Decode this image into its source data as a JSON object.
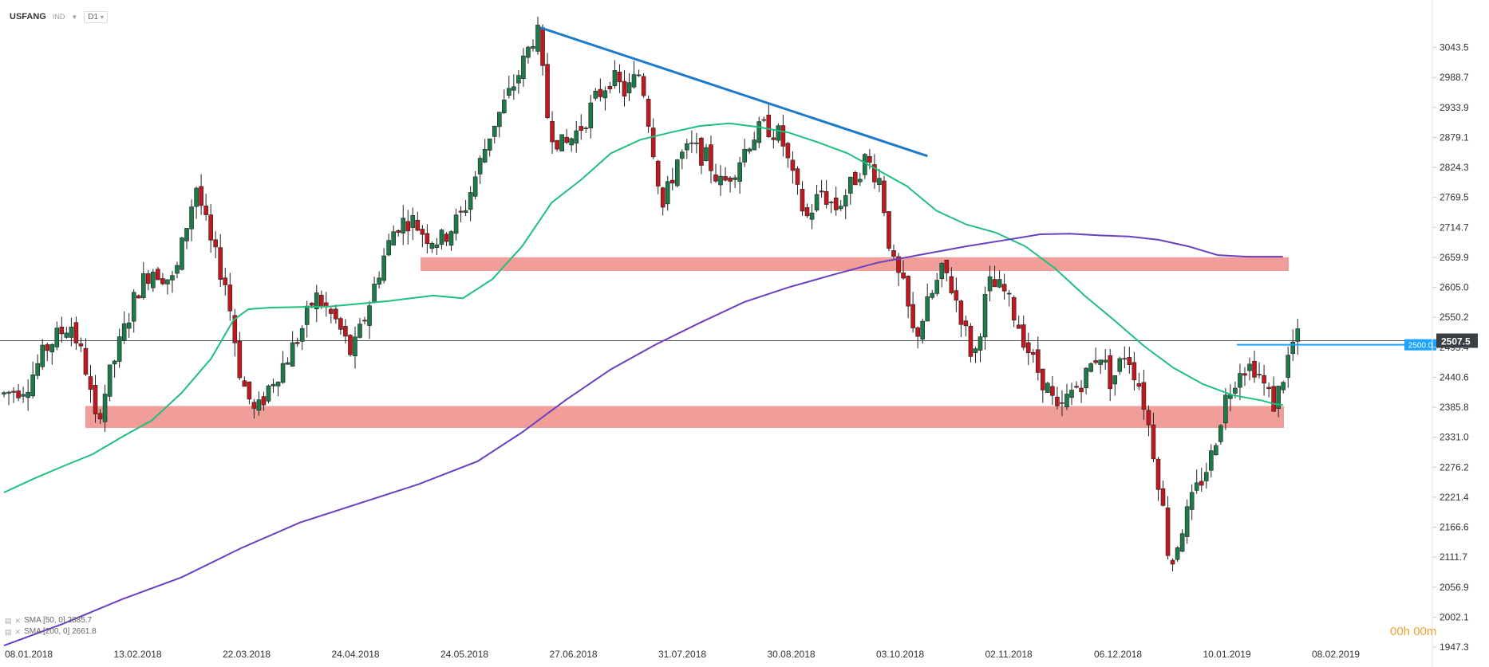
{
  "header": {
    "symbol": "USFANG",
    "type": "IND",
    "timeframe": "D1"
  },
  "legend": {
    "sma50": "SMA [50, 0] 2385.7",
    "sma200": "SMA [200, 0] 2661.8"
  },
  "timer": "00h 00m",
  "colors": {
    "bull": "#1f7a4a",
    "bear": "#c0181e",
    "sma50": "#1fbf7f",
    "sma200": "#6a3fc0",
    "trendline": "#1f7ac8",
    "zone": "#ef8c88",
    "hline": "#1aa3ff",
    "price_tag": "#3a3f44"
  },
  "chart_data": {
    "type": "candlestick",
    "y_ticks": [
      "3043.5",
      "2988.7",
      "2933.9",
      "2879.1",
      "2824.3",
      "2769.5",
      "2714.7",
      "2659.9",
      "2605.0",
      "2550.2",
      "2495.4",
      "2440.6",
      "2385.8",
      "2331.0",
      "2276.2",
      "2221.4",
      "2166.6",
      "2111.7",
      "2056.9",
      "2002.1",
      "1947.3"
    ],
    "x_ticks": [
      "08.01.2018",
      "13.02.2018",
      "22.03.2018",
      "24.04.2018",
      "24.05.2018",
      "27.06.2018",
      "31.07.2018",
      "30.08.2018",
      "03.10.2018",
      "02.11.2018",
      "06.12.2018",
      "10.01.2019",
      "08.02.2019"
    ],
    "ylim": [
      1947.3,
      3098.3
    ],
    "last_price": "2507.5",
    "level_label": "2500.0",
    "zones": [
      {
        "from": 2635,
        "to": 2660
      },
      {
        "from": 2348,
        "to": 2388
      }
    ],
    "trendline": [
      [
        0.3622,
        3080
      ],
      [
        0.6239,
        2845
      ]
    ],
    "hline_level": 2500,
    "sma50": [
      [
        0.0,
        2230
      ],
      [
        0.02,
        2255
      ],
      [
        0.04,
        2278
      ],
      [
        0.06,
        2300
      ],
      [
        0.08,
        2332
      ],
      [
        0.1,
        2362
      ],
      [
        0.12,
        2412
      ],
      [
        0.14,
        2475
      ],
      [
        0.155,
        2545
      ],
      [
        0.165,
        2565
      ],
      [
        0.18,
        2568
      ],
      [
        0.22,
        2570
      ],
      [
        0.26,
        2580
      ],
      [
        0.29,
        2590
      ],
      [
        0.31,
        2585
      ],
      [
        0.33,
        2620
      ],
      [
        0.35,
        2680
      ],
      [
        0.37,
        2760
      ],
      [
        0.39,
        2802
      ],
      [
        0.41,
        2850
      ],
      [
        0.43,
        2875
      ],
      [
        0.45,
        2888
      ],
      [
        0.47,
        2900
      ],
      [
        0.49,
        2905
      ],
      [
        0.51,
        2898
      ],
      [
        0.53,
        2888
      ],
      [
        0.55,
        2870
      ],
      [
        0.57,
        2850
      ],
      [
        0.59,
        2820
      ],
      [
        0.61,
        2790
      ],
      [
        0.63,
        2745
      ],
      [
        0.65,
        2720
      ],
      [
        0.67,
        2705
      ],
      [
        0.69,
        2680
      ],
      [
        0.71,
        2640
      ],
      [
        0.73,
        2590
      ],
      [
        0.75,
        2545
      ],
      [
        0.77,
        2498
      ],
      [
        0.79,
        2458
      ],
      [
        0.81,
        2428
      ],
      [
        0.83,
        2408
      ],
      [
        0.85,
        2398
      ],
      [
        0.858,
        2392
      ],
      [
        0.864,
        2390
      ]
    ],
    "sma200": [
      [
        0.0,
        1950
      ],
      [
        0.04,
        1990
      ],
      [
        0.08,
        2035
      ],
      [
        0.12,
        2075
      ],
      [
        0.16,
        2128
      ],
      [
        0.2,
        2175
      ],
      [
        0.24,
        2210
      ],
      [
        0.28,
        2245
      ],
      [
        0.32,
        2287
      ],
      [
        0.35,
        2340
      ],
      [
        0.38,
        2400
      ],
      [
        0.41,
        2455
      ],
      [
        0.44,
        2500
      ],
      [
        0.47,
        2540
      ],
      [
        0.5,
        2578
      ],
      [
        0.53,
        2605
      ],
      [
        0.56,
        2628
      ],
      [
        0.59,
        2650
      ],
      [
        0.62,
        2665
      ],
      [
        0.65,
        2680
      ],
      [
        0.68,
        2693
      ],
      [
        0.7,
        2702
      ],
      [
        0.72,
        2703
      ],
      [
        0.74,
        2700
      ],
      [
        0.76,
        2698
      ],
      [
        0.78,
        2692
      ],
      [
        0.8,
        2680
      ],
      [
        0.82,
        2664
      ],
      [
        0.84,
        2661
      ],
      [
        0.864,
        2661
      ]
    ],
    "candles_knots": [
      [
        0.0,
        2410
      ],
      [
        0.015,
        2425
      ],
      [
        0.03,
        2500
      ],
      [
        0.045,
        2540
      ],
      [
        0.055,
        2460
      ],
      [
        0.062,
        2355
      ],
      [
        0.072,
        2450
      ],
      [
        0.09,
        2600
      ],
      [
        0.1,
        2640
      ],
      [
        0.115,
        2615
      ],
      [
        0.125,
        2740
      ],
      [
        0.13,
        2790
      ],
      [
        0.14,
        2680
      ],
      [
        0.15,
        2610
      ],
      [
        0.16,
        2440
      ],
      [
        0.17,
        2370
      ],
      [
        0.18,
        2430
      ],
      [
        0.19,
        2470
      ],
      [
        0.2,
        2520
      ],
      [
        0.21,
        2590
      ],
      [
        0.225,
        2540
      ],
      [
        0.235,
        2480
      ],
      [
        0.245,
        2560
      ],
      [
        0.255,
        2650
      ],
      [
        0.265,
        2720
      ],
      [
        0.275,
        2730
      ],
      [
        0.285,
        2700
      ],
      [
        0.295,
        2690
      ],
      [
        0.31,
        2740
      ],
      [
        0.32,
        2820
      ],
      [
        0.33,
        2900
      ],
      [
        0.34,
        2950
      ],
      [
        0.35,
        3010
      ],
      [
        0.36,
        3080
      ],
      [
        0.368,
        2900
      ],
      [
        0.378,
        2860
      ],
      [
        0.39,
        2900
      ],
      [
        0.4,
        2950
      ],
      [
        0.41,
        2990
      ],
      [
        0.42,
        2960
      ],
      [
        0.43,
        3000
      ],
      [
        0.438,
        2870
      ],
      [
        0.445,
        2750
      ],
      [
        0.455,
        2840
      ],
      [
        0.465,
        2860
      ],
      [
        0.475,
        2840
      ],
      [
        0.485,
        2790
      ],
      [
        0.495,
        2830
      ],
      [
        0.505,
        2880
      ],
      [
        0.515,
        2900
      ],
      [
        0.525,
        2880
      ],
      [
        0.533,
        2800
      ],
      [
        0.542,
        2730
      ],
      [
        0.552,
        2780
      ],
      [
        0.562,
        2750
      ],
      [
        0.572,
        2790
      ],
      [
        0.582,
        2840
      ],
      [
        0.592,
        2800
      ],
      [
        0.6,
        2650
      ],
      [
        0.608,
        2600
      ],
      [
        0.615,
        2510
      ],
      [
        0.625,
        2580
      ],
      [
        0.635,
        2640
      ],
      [
        0.645,
        2570
      ],
      [
        0.655,
        2470
      ],
      [
        0.665,
        2610
      ],
      [
        0.675,
        2600
      ],
      [
        0.685,
        2540
      ],
      [
        0.695,
        2470
      ],
      [
        0.705,
        2420
      ],
      [
        0.712,
        2370
      ],
      [
        0.72,
        2410
      ],
      [
        0.73,
        2440
      ],
      [
        0.74,
        2490
      ],
      [
        0.748,
        2430
      ],
      [
        0.758,
        2490
      ],
      [
        0.768,
        2420
      ],
      [
        0.775,
        2330
      ],
      [
        0.782,
        2220
      ],
      [
        0.788,
        2090
      ],
      [
        0.795,
        2160
      ],
      [
        0.805,
        2230
      ],
      [
        0.815,
        2290
      ],
      [
        0.825,
        2400
      ],
      [
        0.835,
        2460
      ],
      [
        0.845,
        2460
      ],
      [
        0.852,
        2420
      ],
      [
        0.858,
        2390
      ],
      [
        0.864,
        2440
      ],
      [
        0.87,
        2500
      ],
      [
        0.874,
        2512
      ]
    ]
  }
}
